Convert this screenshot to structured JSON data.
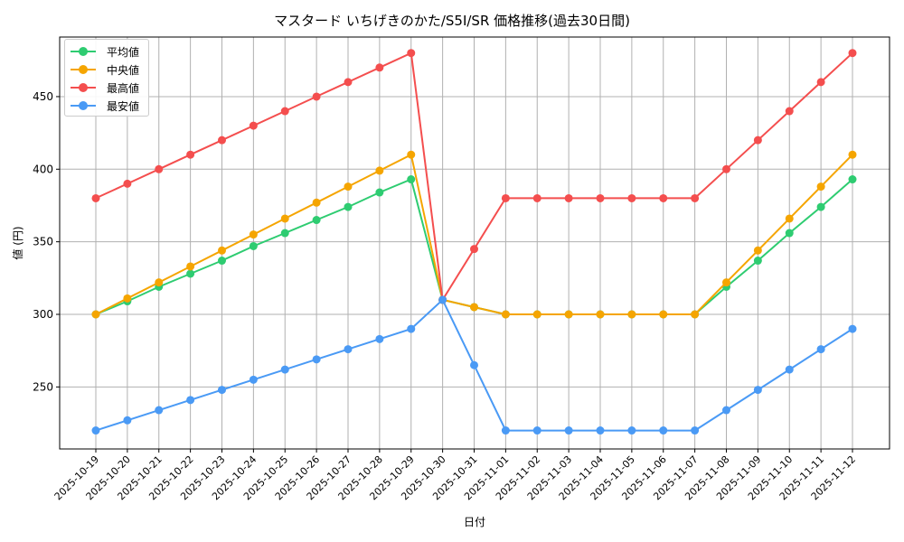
{
  "title": "マスタード いちげきのかた/S5I/SR 価格推移(過去30日間)",
  "chart_data": {
    "type": "line",
    "title": "マスタード いちげきのかた/S5I/SR 価格推移(過去30日間)",
    "xlabel": "日付",
    "ylabel": "値 (円)",
    "x": [
      "2025-10-19",
      "2025-10-20",
      "2025-10-21",
      "2025-10-22",
      "2025-10-23",
      "2025-10-24",
      "2025-10-25",
      "2025-10-26",
      "2025-10-27",
      "2025-10-28",
      "2025-10-29",
      "2025-10-30",
      "2025-10-31",
      "2025-11-01",
      "2025-11-02",
      "2025-11-03",
      "2025-11-04",
      "2025-11-05",
      "2025-11-06",
      "2025-11-07",
      "2025-11-08",
      "2025-11-09",
      "2025-11-10",
      "2025-11-11",
      "2025-11-12"
    ],
    "yticks": [
      250,
      300,
      350,
      400,
      450
    ],
    "ylim": [
      206,
      491
    ],
    "grid": true,
    "legend_position": "upper left",
    "series": [
      {
        "name": "平均値",
        "color": "#2ecc71",
        "values": [
          300,
          309,
          319,
          328,
          337,
          347,
          356,
          365,
          374,
          384,
          393,
          310,
          305,
          300,
          300,
          300,
          300,
          300,
          300,
          300,
          319,
          337,
          356,
          374,
          393
        ]
      },
      {
        "name": "中央値",
        "color": "#f5a500",
        "values": [
          300,
          311,
          322,
          333,
          344,
          355,
          366,
          377,
          388,
          399,
          410,
          310,
          305,
          300,
          300,
          300,
          300,
          300,
          300,
          300,
          322,
          344,
          366,
          388,
          410
        ]
      },
      {
        "name": "最高値",
        "color": "#f44e4e",
        "values": [
          380,
          390,
          400,
          410,
          420,
          430,
          440,
          450,
          460,
          470,
          480,
          310,
          345,
          380,
          380,
          380,
          380,
          380,
          380,
          380,
          400,
          420,
          440,
          460,
          480
        ]
      },
      {
        "name": "最安値",
        "color": "#4a9af5",
        "values": [
          220,
          227,
          234,
          241,
          248,
          255,
          262,
          269,
          276,
          283,
          290,
          310,
          265,
          220,
          220,
          220,
          220,
          220,
          220,
          220,
          234,
          248,
          262,
          276,
          290
        ]
      }
    ]
  }
}
